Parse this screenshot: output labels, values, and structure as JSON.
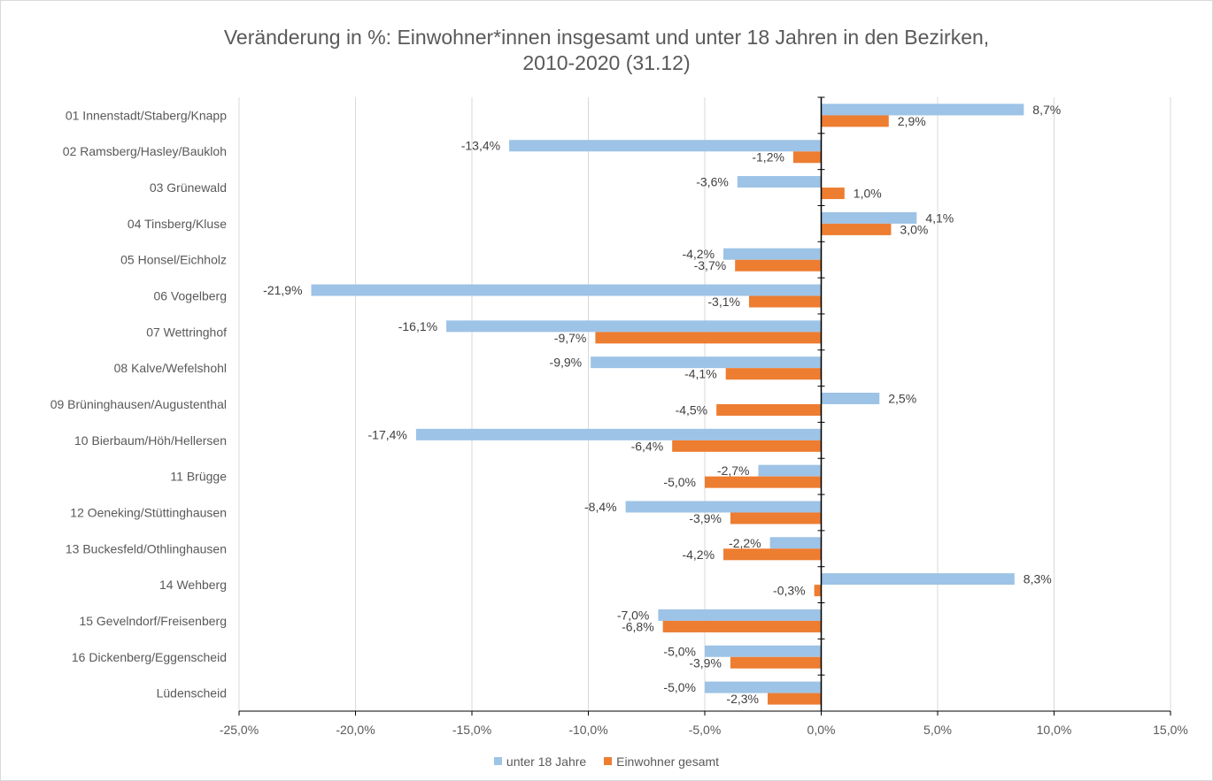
{
  "chart_data": {
    "type": "bar",
    "orientation": "horizontal",
    "title_line1": "Veränderung in %: Einwohner*innen insgesamt und unter 18 Jahren in den Bezirken,",
    "title_line2": "2010-2020 (31.12)",
    "categories": [
      "01 Innenstadt/Staberg/Knapp",
      "02 Ramsberg/Hasley/Baukloh",
      "03 Grünewald",
      "04 Tinsberg/Kluse",
      "05 Honsel/Eichholz",
      "06 Vogelberg",
      "07 Wettringhof",
      "08 Kalve/Wefelshohl",
      "09 Brüninghausen/Augustenthal",
      "10 Bierbaum/Höh/Hellersen",
      "11 Brügge",
      "12 Oeneking/Stüttinghausen",
      "13 Buckesfeld/Othlinghausen",
      "14 Wehberg",
      "15 Gevelndorf/Freisenberg",
      "16 Dickenberg/Eggenscheid",
      "Lüdenscheid"
    ],
    "series": [
      {
        "name": "unter 18 Jahre",
        "color": "#9dc3e6",
        "values": [
          8.7,
          -13.4,
          -3.6,
          4.1,
          -4.2,
          -21.9,
          -16.1,
          -9.9,
          2.5,
          -17.4,
          -2.7,
          -8.4,
          -2.2,
          8.3,
          -7.0,
          -5.0,
          -5.0
        ],
        "labels": [
          "8,7%",
          "-13,4%",
          "-3,6%",
          "4,1%",
          "-4,2%",
          "-21,9%",
          "-16,1%",
          "-9,9%",
          "2,5%",
          "-17,4%",
          "-2,7%",
          "-8,4%",
          "-2,2%",
          "8,3%",
          "-7,0%",
          "-5,0%",
          "-5,0%"
        ]
      },
      {
        "name": "Einwohner gesamt",
        "color": "#ed7d31",
        "values": [
          2.9,
          -1.2,
          1.0,
          3.0,
          -3.7,
          -3.1,
          -9.7,
          -4.1,
          -4.5,
          -6.4,
          -5.0,
          -3.9,
          -4.2,
          -0.3,
          -6.8,
          -3.9,
          -2.3
        ],
        "labels": [
          "2,9%",
          "-1,2%",
          "1,0%",
          "3,0%",
          "-3,7%",
          "-3,1%",
          "-9,7%",
          "-4,1%",
          "-4,5%",
          "-6,4%",
          "-5,0%",
          "-3,9%",
          "-4,2%",
          "-0,3%",
          "-6,8%",
          "-3,9%",
          "-2,3%"
        ]
      }
    ],
    "xlim": [
      -25,
      15
    ],
    "xticks": [
      -25,
      -20,
      -15,
      -10,
      -5,
      0,
      5,
      10,
      15
    ],
    "xtick_labels": [
      "-25,0%",
      "-20,0%",
      "-15,0%",
      "-10,0%",
      "-5,0%",
      "0,0%",
      "5,0%",
      "10,0%",
      "15,0%"
    ],
    "grid": true,
    "legend_position": "bottom",
    "colors": {
      "axis": "#000000",
      "grid": "#d9d9d9",
      "text": "#595959"
    }
  }
}
